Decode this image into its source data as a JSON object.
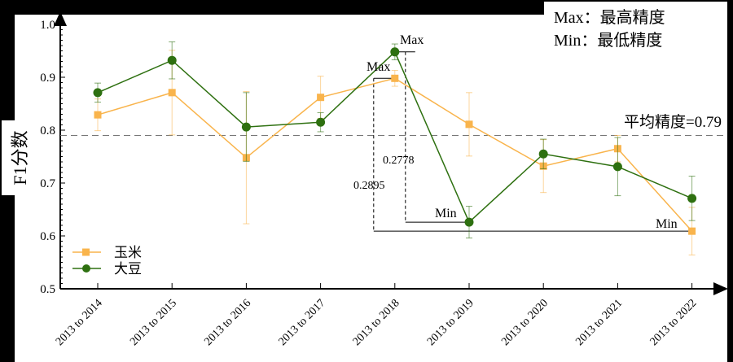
{
  "chart_data": {
    "type": "line",
    "title": "",
    "xlabel": "",
    "ylabel": "F1分数",
    "ylim": [
      0.5,
      1.0
    ],
    "yticks": [
      "0.5",
      "0.6",
      "0.7",
      "0.8",
      "0.9",
      "1.0"
    ],
    "categories": [
      "2013 to 2014",
      "2013 to 2015",
      "2013 to 2016",
      "2013 to 2017",
      "2013 to 2018",
      "2013 to 2019",
      "2013 to 2020",
      "2013 to 2021",
      "2013 to 2022"
    ],
    "series": [
      {
        "name": "玉米",
        "color": "#f9b44c",
        "marker": "square",
        "values": [
          0.829,
          0.871,
          0.748,
          0.862,
          0.898,
          0.811,
          0.732,
          0.765,
          0.609
        ],
        "errors": [
          0.03,
          0.08,
          0.125,
          0.04,
          0.015,
          0.06,
          0.05,
          0.025,
          0.045
        ]
      },
      {
        "name": "大豆",
        "color": "#2e7010",
        "marker": "circle",
        "values": [
          0.871,
          0.932,
          0.806,
          0.815,
          0.948,
          0.626,
          0.755,
          0.731,
          0.671
        ],
        "errors": [
          0.018,
          0.035,
          0.065,
          0.018,
          0.015,
          0.03,
          0.028,
          0.055,
          0.042
        ]
      }
    ],
    "legend_position": "bottom-left",
    "reference_line": {
      "value": 0.79,
      "label": "平均精度=0.79"
    },
    "annotations": {
      "max_label": "Max",
      "min_label": "Min",
      "soy_diff": "0.2778",
      "corn_diff": "0.2895"
    },
    "note_box": [
      "Max：最高精度",
      "Min：最低精度"
    ]
  }
}
